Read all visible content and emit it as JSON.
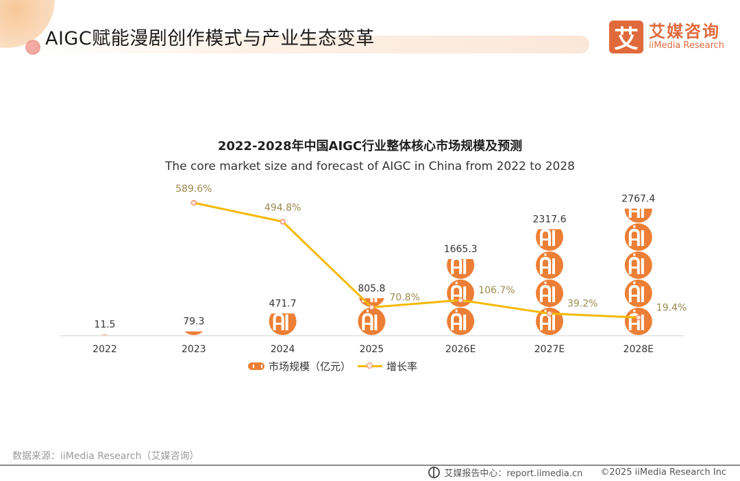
{
  "header": {
    "page_title": "AIGC赋能漫剧创作模式与产业生态变革",
    "logo_mark": "艾",
    "logo_cn": "艾媒咨询",
    "logo_en": "iiMedia Research"
  },
  "chart_data": {
    "type": "bar",
    "title": "2022-2028年中国AIGC行业整体核心市场规模及预测",
    "subtitle": "The core market size and forecast of AIGC in China from 2022 to 2028",
    "categories": [
      "2022",
      "2023",
      "2024",
      "2025",
      "2026E",
      "2027E",
      "2028E"
    ],
    "series": [
      {
        "name": "市场规模（亿元）",
        "type": "pictorial-bar",
        "icon": "ai-circle-icon",
        "color": "#ec7f35",
        "values": [
          11.5,
          79.3,
          471.7,
          805.8,
          1665.3,
          2317.6,
          2767.4
        ],
        "labels": [
          "11.5",
          "79.3",
          "471.7",
          "805.8",
          "1665.3",
          "2317.6",
          "2767.4"
        ]
      },
      {
        "name": "增长率",
        "type": "line",
        "color": "#f5b800",
        "unit": "%",
        "values": [
          null,
          589.6,
          494.8,
          70.8,
          106.7,
          39.2,
          19.4
        ],
        "labels": [
          "",
          "589.6%",
          "494.8%",
          "70.8%",
          "106.7%",
          "39.2%",
          "19.4%"
        ]
      }
    ],
    "xlabel": "",
    "ylabel": "",
    "grid": false,
    "legend": "bottom-center"
  },
  "legend": {
    "bar_label": "市场规模（亿元）",
    "line_label": "增长率"
  },
  "footer": {
    "source": "数据来源：iiMedia Research（艾媒咨询）",
    "report_center": "艾媒报告中心：report.iimedia.cn",
    "copyright": "©2025  iiMedia Research  Inc"
  }
}
